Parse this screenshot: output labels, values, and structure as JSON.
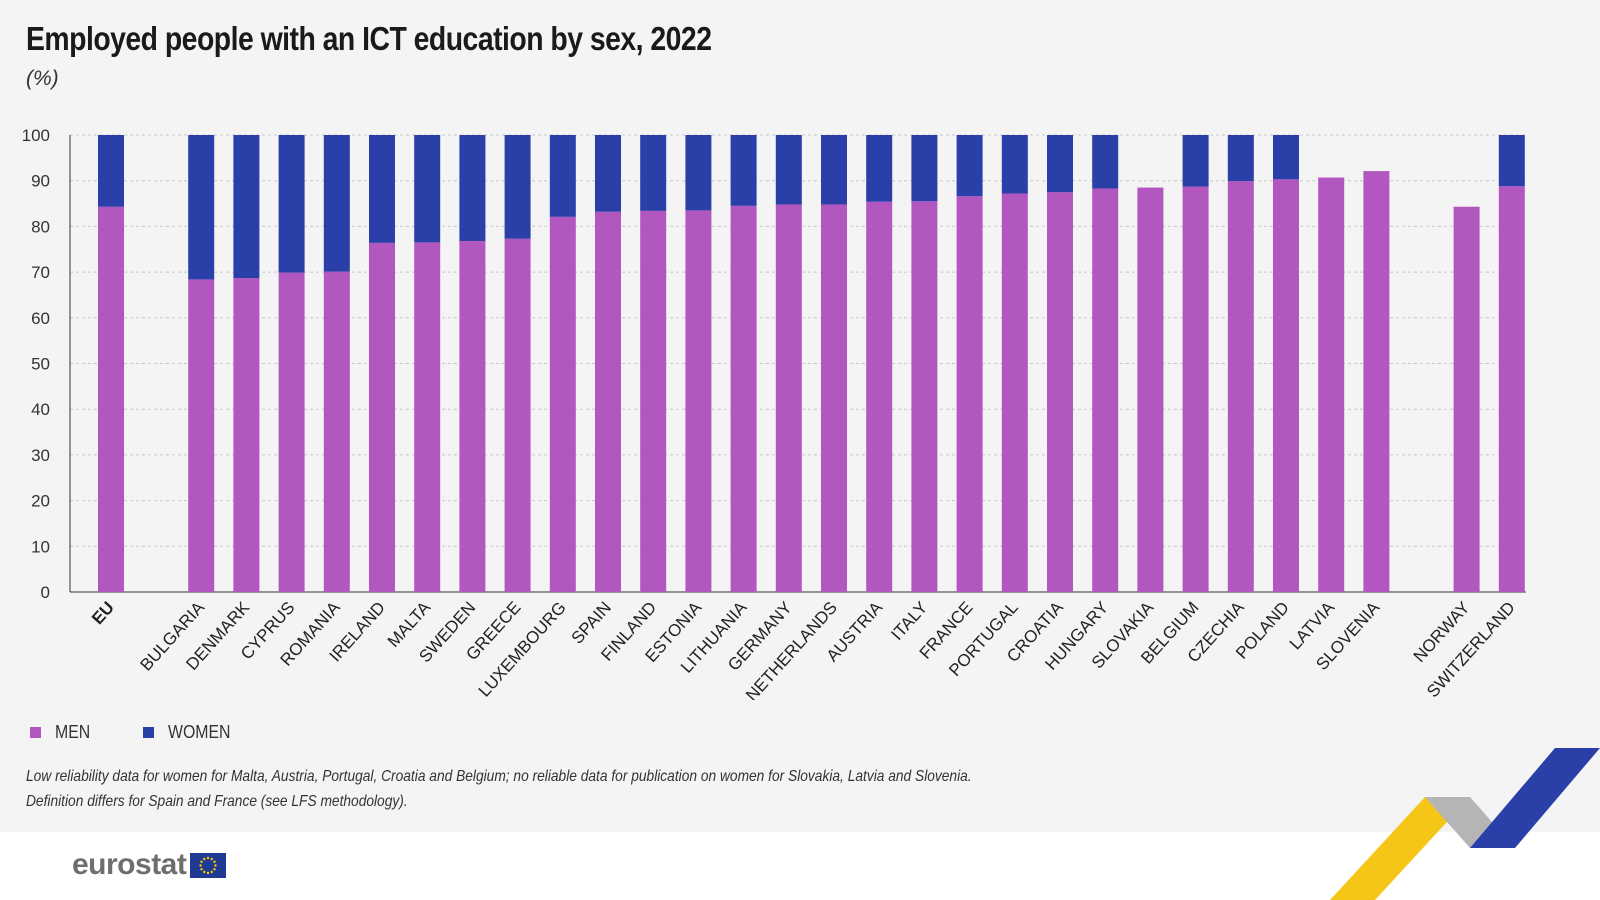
{
  "chart_data": {
    "type": "bar",
    "stacked": true,
    "title": "Employed people with an ICT education by sex, 2022",
    "subtitle": "(%)",
    "ylim": [
      0,
      100
    ],
    "yticks": [
      0,
      10,
      20,
      30,
      40,
      50,
      60,
      70,
      80,
      90,
      100
    ],
    "grid": true,
    "legend_position": "bottom-left",
    "categories": [
      "EU",
      "BULGARIA",
      "DENMARK",
      "CYPRUS",
      "ROMANIA",
      "IRELAND",
      "MALTA",
      "SWEDEN",
      "GREECE",
      "LUXEMBOURG",
      "SPAIN",
      "FINLAND",
      "ESTONIA",
      "LITHUANIA",
      "GERMANY",
      "NETHERLANDS",
      "AUSTRIA",
      "ITALY",
      "FRANCE",
      "PORTUGAL",
      "CROATIA",
      "HUNGARY",
      "SLOVAKIA",
      "BELGIUM",
      "CZECHIA",
      "POLAND",
      "LATVIA",
      "SLOVENIA",
      "NORWAY",
      "SWITZERLAND"
    ],
    "groups": [
      0,
      1,
      1,
      1,
      1,
      1,
      1,
      1,
      1,
      1,
      1,
      1,
      1,
      1,
      1,
      1,
      1,
      1,
      1,
      1,
      1,
      1,
      1,
      1,
      1,
      1,
      1,
      1,
      2,
      2
    ],
    "series": [
      {
        "name": "MEN",
        "color": "#b357c0",
        "values": [
          84.3,
          68.4,
          68.7,
          69.9,
          70.1,
          76.4,
          76.5,
          76.8,
          77.3,
          82.1,
          83.2,
          83.4,
          83.5,
          84.5,
          84.8,
          84.8,
          85.4,
          85.5,
          86.6,
          87.2,
          87.5,
          88.3,
          88.5,
          88.7,
          89.9,
          90.3,
          90.7,
          92.1,
          84.3,
          88.8
        ]
      },
      {
        "name": "WOMEN",
        "color": "#2a3fa8",
        "values": [
          15.7,
          31.6,
          31.3,
          30.1,
          29.9,
          23.6,
          23.5,
          23.2,
          22.7,
          17.9,
          16.8,
          16.6,
          16.5,
          15.5,
          15.2,
          15.2,
          14.6,
          14.5,
          13.4,
          12.8,
          12.5,
          11.7,
          null,
          11.3,
          10.1,
          9.7,
          null,
          null,
          null,
          11.2
        ]
      }
    ]
  },
  "notes": [
    "Low reliability data for women for Malta, Austria, Portugal, Croatia and Belgium; no reliable data for publication on women for Slovakia, Latvia and Slovenia.",
    "Definition differs for Spain and France (see LFS methodology)."
  ],
  "brand": {
    "name": "eurostat",
    "flag_icon": "eu-flag-icon"
  },
  "colors": {
    "men": "#b357c0",
    "women": "#2a3fa8",
    "background": "#f4f4f4"
  }
}
